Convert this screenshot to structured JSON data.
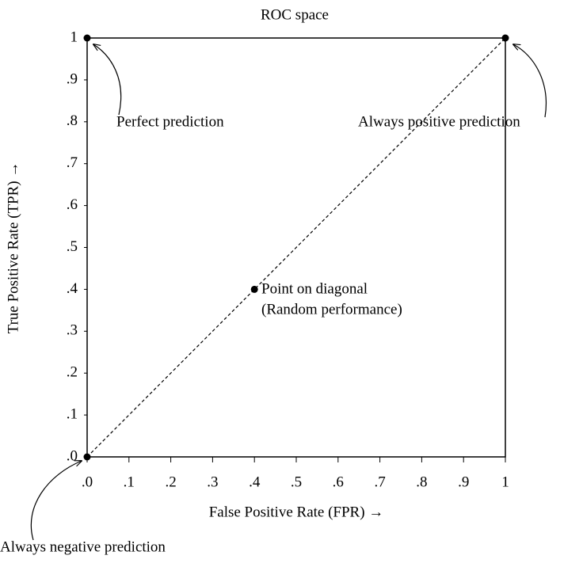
{
  "chart_data": {
    "type": "scatter",
    "title": "ROC space",
    "x_label": "False Positive Rate (FPR) →",
    "y_label": "True Positive Rate (TPR) →",
    "x": [
      0,
      1,
      0.4,
      0
    ],
    "values": [
      1,
      1,
      0.4,
      0
    ],
    "color": "#000000",
    "annotations": [
      "Perfect prediction",
      "Always positive prediction",
      "Point on diagonal",
      "(Random performance)",
      "Always negative prediction"
    ],
    "xlim": [
      0,
      1
    ],
    "ylim": [
      0,
      1
    ],
    "xticks": [
      {
        "value": 0,
        "label": ".0"
      },
      {
        "value": 0.1,
        "label": ".1"
      },
      {
        "value": 0.2,
        "label": ".2"
      },
      {
        "value": 0.3,
        "label": ".3"
      },
      {
        "value": 0.4,
        "label": ".4"
      },
      {
        "value": 0.5,
        "label": ".5"
      },
      {
        "value": 0.6,
        "label": ".6"
      },
      {
        "value": 0.7,
        "label": ".7"
      },
      {
        "value": 0.8,
        "label": ".8"
      },
      {
        "value": 0.9,
        "label": ".9"
      },
      1
    ],
    "yticks": [
      {
        "value": 0,
        "label": ".0"
      },
      {
        "value": 0.1,
        "label": ".1"
      },
      {
        "value": 0.2,
        "label": ".2"
      },
      {
        "value": 0.3,
        "label": ".3"
      },
      {
        "value": 0.4,
        "label": ".4"
      },
      {
        "value": 0.5,
        "label": ".5"
      },
      {
        "value": 0.6,
        "label": ".6"
      },
      {
        "value": 0.7,
        "label": ".7"
      },
      {
        "value": 0.8,
        "label": ".8"
      },
      {
        "value": 0.9,
        "label": ".9"
      },
      1
    ],
    "grid": false
  }
}
